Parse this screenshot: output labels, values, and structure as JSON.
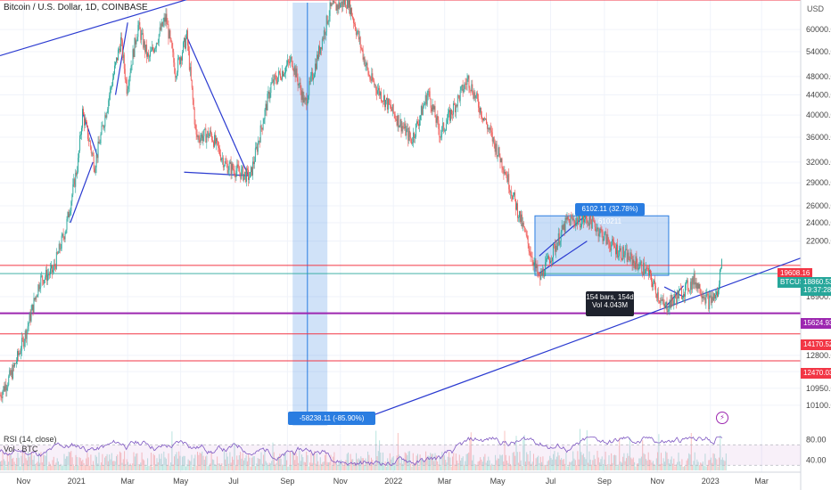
{
  "header": {
    "title": "Bitcoin / U.S. Dollar, 1D, COINBASE",
    "currency": "USD"
  },
  "indicators": {
    "rsi_label": "RSI (14, close)",
    "vol_label": "Vol · BTC",
    "rsi_ticks": [
      "80.00",
      "40.00"
    ]
  },
  "price_badges": {
    "red_level": "19608.16",
    "current_symbol": "BTCUSD",
    "current_price": "18860.53",
    "countdown": "19:37:28",
    "purple_level": "15624.93",
    "level_2": "14170.52",
    "level_3": "12470.03"
  },
  "annotations": {
    "range_top": "6102.11 (32.78%) 610211",
    "range_bars": "154 bars, 154d",
    "range_vol": "Vol 4.043M",
    "drop": "-58238.11 (-85.90%) -5823811"
  },
  "chart_data": {
    "type": "line",
    "title": "Bitcoin / U.S. Dollar, 1D, COINBASE",
    "xlabel": "",
    "ylabel": "",
    "y_scale": "log",
    "ylim": [
      9200,
      69000
    ],
    "y_ticks": [
      60000,
      54000,
      48000,
      44000,
      40000,
      36000,
      32000,
      29000,
      26000,
      24000,
      22000,
      16900,
      12800,
      11850,
      10950,
      10100
    ],
    "y_tick_labels": [
      "60000.00",
      "54000.00",
      "48000.00",
      "44000.00",
      "40000.00",
      "36000.00",
      "32000.00",
      "29000.00",
      "26000.00",
      "24000.00",
      "22000.00",
      "16900.00",
      "12800.00",
      "11850.00",
      "10950.00",
      "10100.00"
    ],
    "x_labels": [
      "Nov",
      "2021",
      "Mar",
      "May",
      "Jul",
      "Sep",
      "Nov",
      "2022",
      "Mar",
      "May",
      "Jul",
      "Sep",
      "Nov",
      "2023",
      "Mar"
    ],
    "x_dates": [
      "2020-11-01",
      "2021-01-01",
      "2021-03-01",
      "2021-05-01",
      "2021-07-01",
      "2021-09-01",
      "2021-11-01",
      "2022-01-01",
      "2022-03-01",
      "2022-05-01",
      "2022-07-01",
      "2022-09-01",
      "2022-11-01",
      "2023-01-01",
      "2023-03-01"
    ],
    "x_range": [
      "2020-10-05",
      "2023-04-15"
    ],
    "series": [
      {
        "values": [
          [
            "2020-10-05",
            10600
          ],
          [
            "2020-10-20",
            11900
          ],
          [
            "2020-11-05",
            14500
          ],
          [
            "2020-11-20",
            18300
          ],
          [
            "2020-12-05",
            19100
          ],
          [
            "2020-12-20",
            23500
          ],
          [
            "2021-01-03",
            32000
          ],
          [
            "2021-01-08",
            40500
          ],
          [
            "2021-01-22",
            31500
          ],
          [
            "2021-02-08",
            44000
          ],
          [
            "2021-02-21",
            57000
          ],
          [
            "2021-02-28",
            45500
          ],
          [
            "2021-03-13",
            61000
          ],
          [
            "2021-03-25",
            52000
          ],
          [
            "2021-04-14",
            63500
          ],
          [
            "2021-04-25",
            49000
          ],
          [
            "2021-05-08",
            58000
          ],
          [
            "2021-05-19",
            36000
          ],
          [
            "2021-06-05",
            36500
          ],
          [
            "2021-06-22",
            31500
          ],
          [
            "2021-07-20",
            29800
          ],
          [
            "2021-08-13",
            46000
          ],
          [
            "2021-09-06",
            52000
          ],
          [
            "2021-09-21",
            42000
          ],
          [
            "2021-10-20",
            66000
          ],
          [
            "2021-11-10",
            68800
          ],
          [
            "2021-12-04",
            48000
          ],
          [
            "2022-01-22",
            35500
          ],
          [
            "2022-02-10",
            44500
          ],
          [
            "2022-02-24",
            36500
          ],
          [
            "2022-03-28",
            47500
          ],
          [
            "2022-05-09",
            31000
          ],
          [
            "2022-06-18",
            18300
          ],
          [
            "2022-07-20",
            24200
          ],
          [
            "2022-08-15",
            24400
          ],
          [
            "2022-09-10",
            21500
          ],
          [
            "2022-10-20",
            19100
          ],
          [
            "2022-11-09",
            16000
          ],
          [
            "2022-12-14",
            18300
          ],
          [
            "2022-12-30",
            16500
          ],
          [
            "2023-01-10",
            17200
          ],
          [
            "2023-01-14",
            20800
          ]
        ]
      }
    ]
  }
}
